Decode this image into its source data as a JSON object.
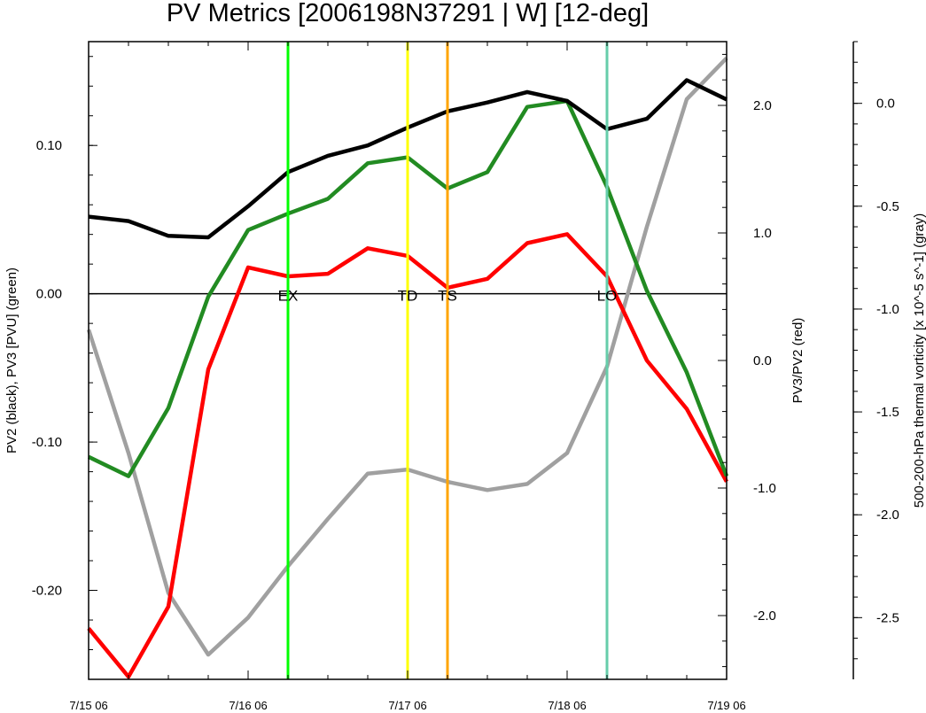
{
  "chart_data": {
    "type": "line",
    "title": "PV Metrics [2006198N37291 | W] [12-deg]",
    "x_tick_labels": [
      "7/15 06",
      "7/16 06",
      "7/17 06",
      "7/18 06",
      "7/19 06"
    ],
    "x_tick_positions": [
      0,
      1,
      2,
      3,
      4
    ],
    "xlim": [
      0,
      4
    ],
    "left_axis": {
      "label": "PV2 (black), PV3 [PVU] (green)",
      "ylim": [
        -0.26,
        0.17
      ],
      "ticks": [
        0.1,
        0.0,
        -0.1,
        -0.2
      ],
      "tick_labels": [
        "0.10",
        "0.00",
        "-0.10",
        "-0.20"
      ]
    },
    "right_axis": {
      "label": "PV3/PV2 (red)",
      "ylim": [
        -2.5,
        2.5
      ],
      "ticks": [
        2.0,
        1.0,
        0.0,
        -1.0,
        -2.0
      ],
      "tick_labels": [
        "2.0",
        "1.0",
        "0.0",
        "-1.0",
        "-2.0"
      ]
    },
    "far_right_axis": {
      "label": "500-200-hPa thermal vorticity [x 10^-5 s^-1] (gray)",
      "ylim": [
        -2.8,
        0.3
      ],
      "ticks": [
        0.0,
        -0.5,
        -1.0,
        -1.5,
        -2.0,
        -2.5
      ],
      "tick_labels": [
        "0.0",
        "-0.5",
        "-1.0",
        "-1.5",
        "-2.0",
        "-2.5"
      ]
    },
    "x": [
      0,
      0.25,
      0.5,
      0.75,
      1,
      1.25,
      1.5,
      1.75,
      2,
      2.25,
      2.5,
      2.75,
      3,
      3.25,
      3.5,
      3.75,
      4
    ],
    "series": [
      {
        "color": "#000000",
        "axis": "left",
        "values": [
          0.052,
          0.049,
          0.039,
          0.038,
          0.059,
          0.082,
          0.093,
          0.1,
          0.112,
          0.123,
          0.129,
          0.136,
          0.13,
          0.111,
          0.118,
          0.144,
          0.131
        ]
      },
      {
        "color": "#228b22",
        "axis": "left",
        "values": [
          -0.11,
          -0.123,
          -0.077,
          -0.002,
          0.043,
          0.054,
          0.064,
          0.088,
          0.092,
          0.071,
          0.082,
          0.126,
          0.13,
          0.072,
          0.002,
          -0.053,
          -0.123
        ]
      },
      {
        "color": "#ff0000",
        "axis": "right",
        "values": [
          -2.1,
          -2.48,
          -1.93,
          -0.07,
          0.73,
          0.66,
          0.68,
          0.88,
          0.82,
          0.57,
          0.64,
          0.92,
          0.99,
          0.66,
          0.0,
          -0.38,
          -0.95
        ]
      },
      {
        "color": "#a0a0a0",
        "axis": "far_right",
        "values": [
          -1.1,
          -1.7,
          -2.38,
          -2.68,
          -2.5,
          -2.25,
          -2.02,
          -1.8,
          -1.78,
          -1.84,
          -1.88,
          -1.85,
          -1.7,
          -1.28,
          -0.6,
          0.02,
          0.22
        ]
      }
    ],
    "event_lines": [
      {
        "label": "EX",
        "x": 1.25,
        "color": "#00ff00"
      },
      {
        "label": "TD",
        "x": 2.0,
        "color": "#ffff00"
      },
      {
        "label": "TS",
        "x": 2.25,
        "color": "#ffa500"
      },
      {
        "label": "LO",
        "x": 3.25,
        "color": "#66cdaa"
      }
    ],
    "zero_line": true,
    "grid": false
  }
}
